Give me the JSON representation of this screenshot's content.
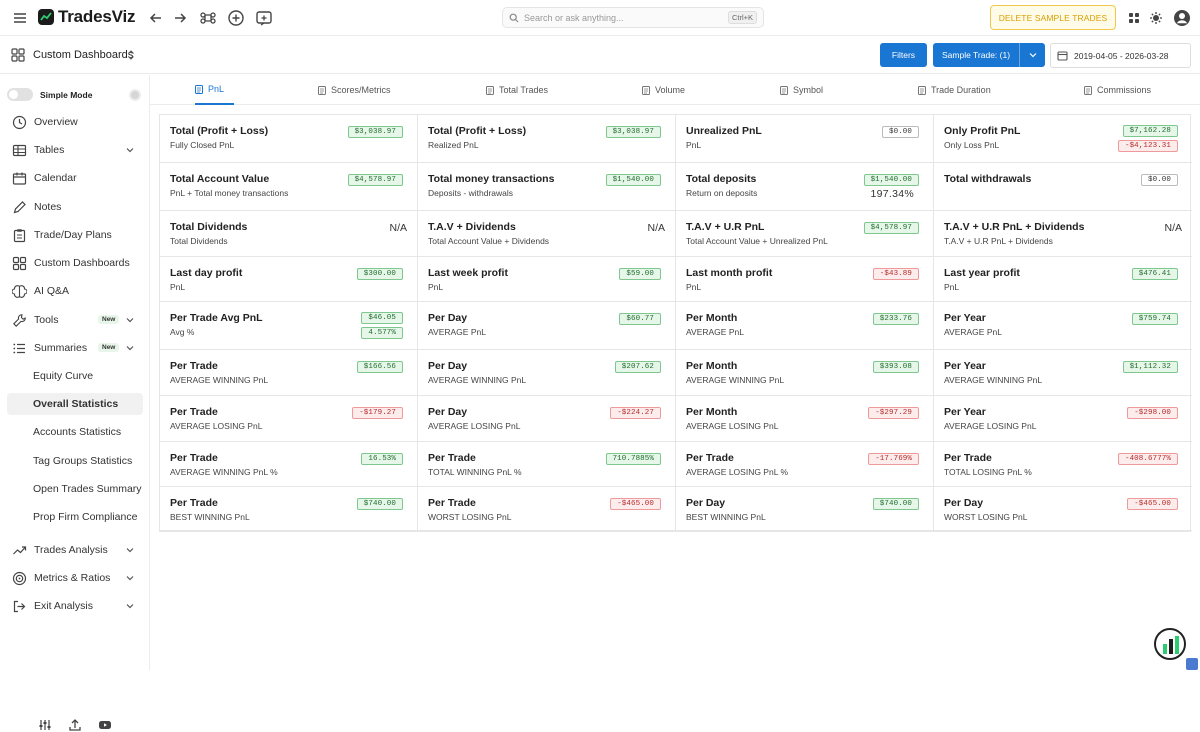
{
  "app": {
    "name": "TradesViz"
  },
  "search": {
    "placeholder": "Search or ask anything...",
    "shortcut": "Ctrl+K"
  },
  "header": {
    "delete_label": "DELETE SAMPLE TRADES"
  },
  "subbar": {
    "dashboard_label": "Custom Dashboards",
    "filters_label": "Filters",
    "account_label": "Sample Trade: (1)",
    "date_range": "2019-04-05 - 2026-03-28"
  },
  "sidebar": {
    "simple_mode_label": "Simple Mode",
    "items": [
      {
        "label": "Overview",
        "icon": "clock-icon"
      },
      {
        "label": "Tables",
        "icon": "table-icon",
        "chevron": true
      },
      {
        "label": "Calendar",
        "icon": "calendar-icon"
      },
      {
        "label": "Notes",
        "icon": "pencil-icon"
      },
      {
        "label": "Trade/Day Plans",
        "icon": "clipboard-icon"
      },
      {
        "label": "Custom Dashboards",
        "icon": "grid-icon"
      },
      {
        "label": "AI Q&A",
        "icon": "brain-icon"
      },
      {
        "label": "Tools",
        "icon": "wrench-icon",
        "badge": "New",
        "chevron": true
      },
      {
        "label": "Summaries",
        "icon": "list-icon",
        "badge": "New",
        "chevron": true
      }
    ],
    "sub_items": [
      "Equity Curve",
      "Overall Statistics",
      "Accounts Statistics",
      "Tag Groups Statistics",
      "Open Trades Summary",
      "Prop Firm Compliance"
    ],
    "active_sub": "Overall Statistics",
    "bottom_items": [
      {
        "label": "Trades Analysis",
        "icon": "trending-icon"
      },
      {
        "label": "Metrics & Ratios",
        "icon": "target-icon"
      },
      {
        "label": "Exit Analysis",
        "icon": "exit-icon"
      }
    ]
  },
  "tabs": [
    "PnL",
    "Scores/Metrics",
    "Total Trades",
    "Volume",
    "Symbol",
    "Trade Duration",
    "Commissions"
  ],
  "active_tab": "PnL",
  "stats": [
    [
      {
        "title": "Total (Profit + Loss)",
        "sub": "Fully Closed PnL",
        "values": [
          {
            "v": "$3,038.97",
            "t": "pos"
          }
        ]
      },
      {
        "title": "Total (Profit + Loss)",
        "sub": "Realized PnL",
        "values": [
          {
            "v": "$3,038.97",
            "t": "pos"
          }
        ]
      },
      {
        "title": "Unrealized PnL",
        "sub": "PnL",
        "values": [
          {
            "v": "$0.00",
            "t": "neu"
          }
        ]
      },
      {
        "title": "Only Profit PnL",
        "sub": "Only Loss PnL",
        "values": [
          {
            "v": "$7,162.28",
            "t": "pos"
          },
          {
            "v": "-$4,123.31",
            "t": "neg"
          }
        ]
      }
    ],
    [
      {
        "title": "Total Account Value",
        "sub": "PnL + Total money transactions",
        "values": [
          {
            "v": "$4,578.97",
            "t": "pos"
          }
        ]
      },
      {
        "title": "Total money transactions",
        "sub": "Deposits - withdrawals",
        "values": [
          {
            "v": "$1,540.00",
            "t": "pos"
          }
        ]
      },
      {
        "title": "Total deposits",
        "sub": "Return on deposits",
        "values": [
          {
            "v": "$1,540.00",
            "t": "pos"
          }
        ],
        "extra": "197.34%"
      },
      {
        "title": "Total withdrawals",
        "sub": "",
        "values": [
          {
            "v": "$0.00",
            "t": "neu"
          }
        ]
      }
    ],
    [
      {
        "title": "Total Dividends",
        "sub": "Total Dividends",
        "na": "N/A"
      },
      {
        "title": "T.A.V + Dividends",
        "sub": "Total Account Value + Dividends",
        "na": "N/A"
      },
      {
        "title": "T.A.V + U.R PnL",
        "sub": "Total Account Value + Unrealized PnL",
        "values": [
          {
            "v": "$4,578.97",
            "t": "pos"
          }
        ]
      },
      {
        "title": "T.A.V + U.R PnL + Dividends",
        "sub": "T.A.V + U.R PnL + Dividends",
        "na": "N/A"
      }
    ],
    [
      {
        "title": "Last day profit",
        "sub": "PnL",
        "values": [
          {
            "v": "$300.00",
            "t": "pos"
          }
        ]
      },
      {
        "title": "Last week profit",
        "sub": "PnL",
        "values": [
          {
            "v": "$59.00",
            "t": "pos"
          }
        ]
      },
      {
        "title": "Last month profit",
        "sub": "PnL",
        "values": [
          {
            "v": "-$43.89",
            "t": "neg"
          }
        ]
      },
      {
        "title": "Last year profit",
        "sub": "PnL",
        "values": [
          {
            "v": "$476.41",
            "t": "pos"
          }
        ]
      }
    ],
    [
      {
        "title": "Per Trade Avg PnL",
        "sub": "Avg %",
        "values": [
          {
            "v": "$46.05",
            "t": "pos"
          },
          {
            "v": "4.577%",
            "t": "pos"
          }
        ]
      },
      {
        "title": "Per Day",
        "sub": "AVERAGE PnL",
        "values": [
          {
            "v": "$60.77",
            "t": "pos"
          }
        ]
      },
      {
        "title": "Per Month",
        "sub": "AVERAGE PnL",
        "values": [
          {
            "v": "$233.76",
            "t": "pos"
          }
        ]
      },
      {
        "title": "Per Year",
        "sub": "AVERAGE PnL",
        "values": [
          {
            "v": "$759.74",
            "t": "pos"
          }
        ]
      }
    ],
    [
      {
        "title": "Per Trade",
        "sub": "AVERAGE WINNING PnL",
        "values": [
          {
            "v": "$166.56",
            "t": "pos"
          }
        ]
      },
      {
        "title": "Per Day",
        "sub": "AVERAGE WINNING PnL",
        "values": [
          {
            "v": "$207.62",
            "t": "pos"
          }
        ]
      },
      {
        "title": "Per Month",
        "sub": "AVERAGE WINNING PnL",
        "values": [
          {
            "v": "$393.08",
            "t": "pos"
          }
        ]
      },
      {
        "title": "Per Year",
        "sub": "AVERAGE WINNING PnL",
        "values": [
          {
            "v": "$1,112.32",
            "t": "pos"
          }
        ]
      }
    ],
    [
      {
        "title": "Per Trade",
        "sub": "AVERAGE LOSING PnL",
        "values": [
          {
            "v": "-$179.27",
            "t": "neg"
          }
        ]
      },
      {
        "title": "Per Day",
        "sub": "AVERAGE LOSING PnL",
        "values": [
          {
            "v": "-$224.27",
            "t": "neg"
          }
        ]
      },
      {
        "title": "Per Month",
        "sub": "AVERAGE LOSING PnL",
        "values": [
          {
            "v": "-$297.29",
            "t": "neg"
          }
        ]
      },
      {
        "title": "Per Year",
        "sub": "AVERAGE LOSING PnL",
        "values": [
          {
            "v": "-$298.00",
            "t": "neg"
          }
        ]
      }
    ],
    [
      {
        "title": "Per Trade",
        "sub": "AVERAGE WINNING PnL %",
        "values": [
          {
            "v": "16.53%",
            "t": "pos"
          }
        ]
      },
      {
        "title": "Per Trade",
        "sub": "TOTAL WINNING PnL %",
        "values": [
          {
            "v": "710.7885%",
            "t": "pos"
          }
        ]
      },
      {
        "title": "Per Trade",
        "sub": "AVERAGE LOSING PnL %",
        "values": [
          {
            "v": "-17.769%",
            "t": "neg"
          }
        ]
      },
      {
        "title": "Per Trade",
        "sub": "TOTAL LOSING PnL %",
        "values": [
          {
            "v": "-408.6777%",
            "t": "neg"
          }
        ]
      }
    ],
    [
      {
        "title": "Per Trade",
        "sub": "BEST WINNING PnL",
        "values": [
          {
            "v": "$740.00",
            "t": "pos"
          }
        ]
      },
      {
        "title": "Per Trade",
        "sub": "WORST LOSING PnL",
        "values": [
          {
            "v": "-$465.00",
            "t": "neg"
          }
        ]
      },
      {
        "title": "Per Day",
        "sub": "BEST WINNING PnL",
        "values": [
          {
            "v": "$740.00",
            "t": "pos"
          }
        ]
      },
      {
        "title": "Per Day",
        "sub": "WORST LOSING PnL",
        "values": [
          {
            "v": "-$465.00",
            "t": "neg"
          }
        ]
      }
    ]
  ]
}
